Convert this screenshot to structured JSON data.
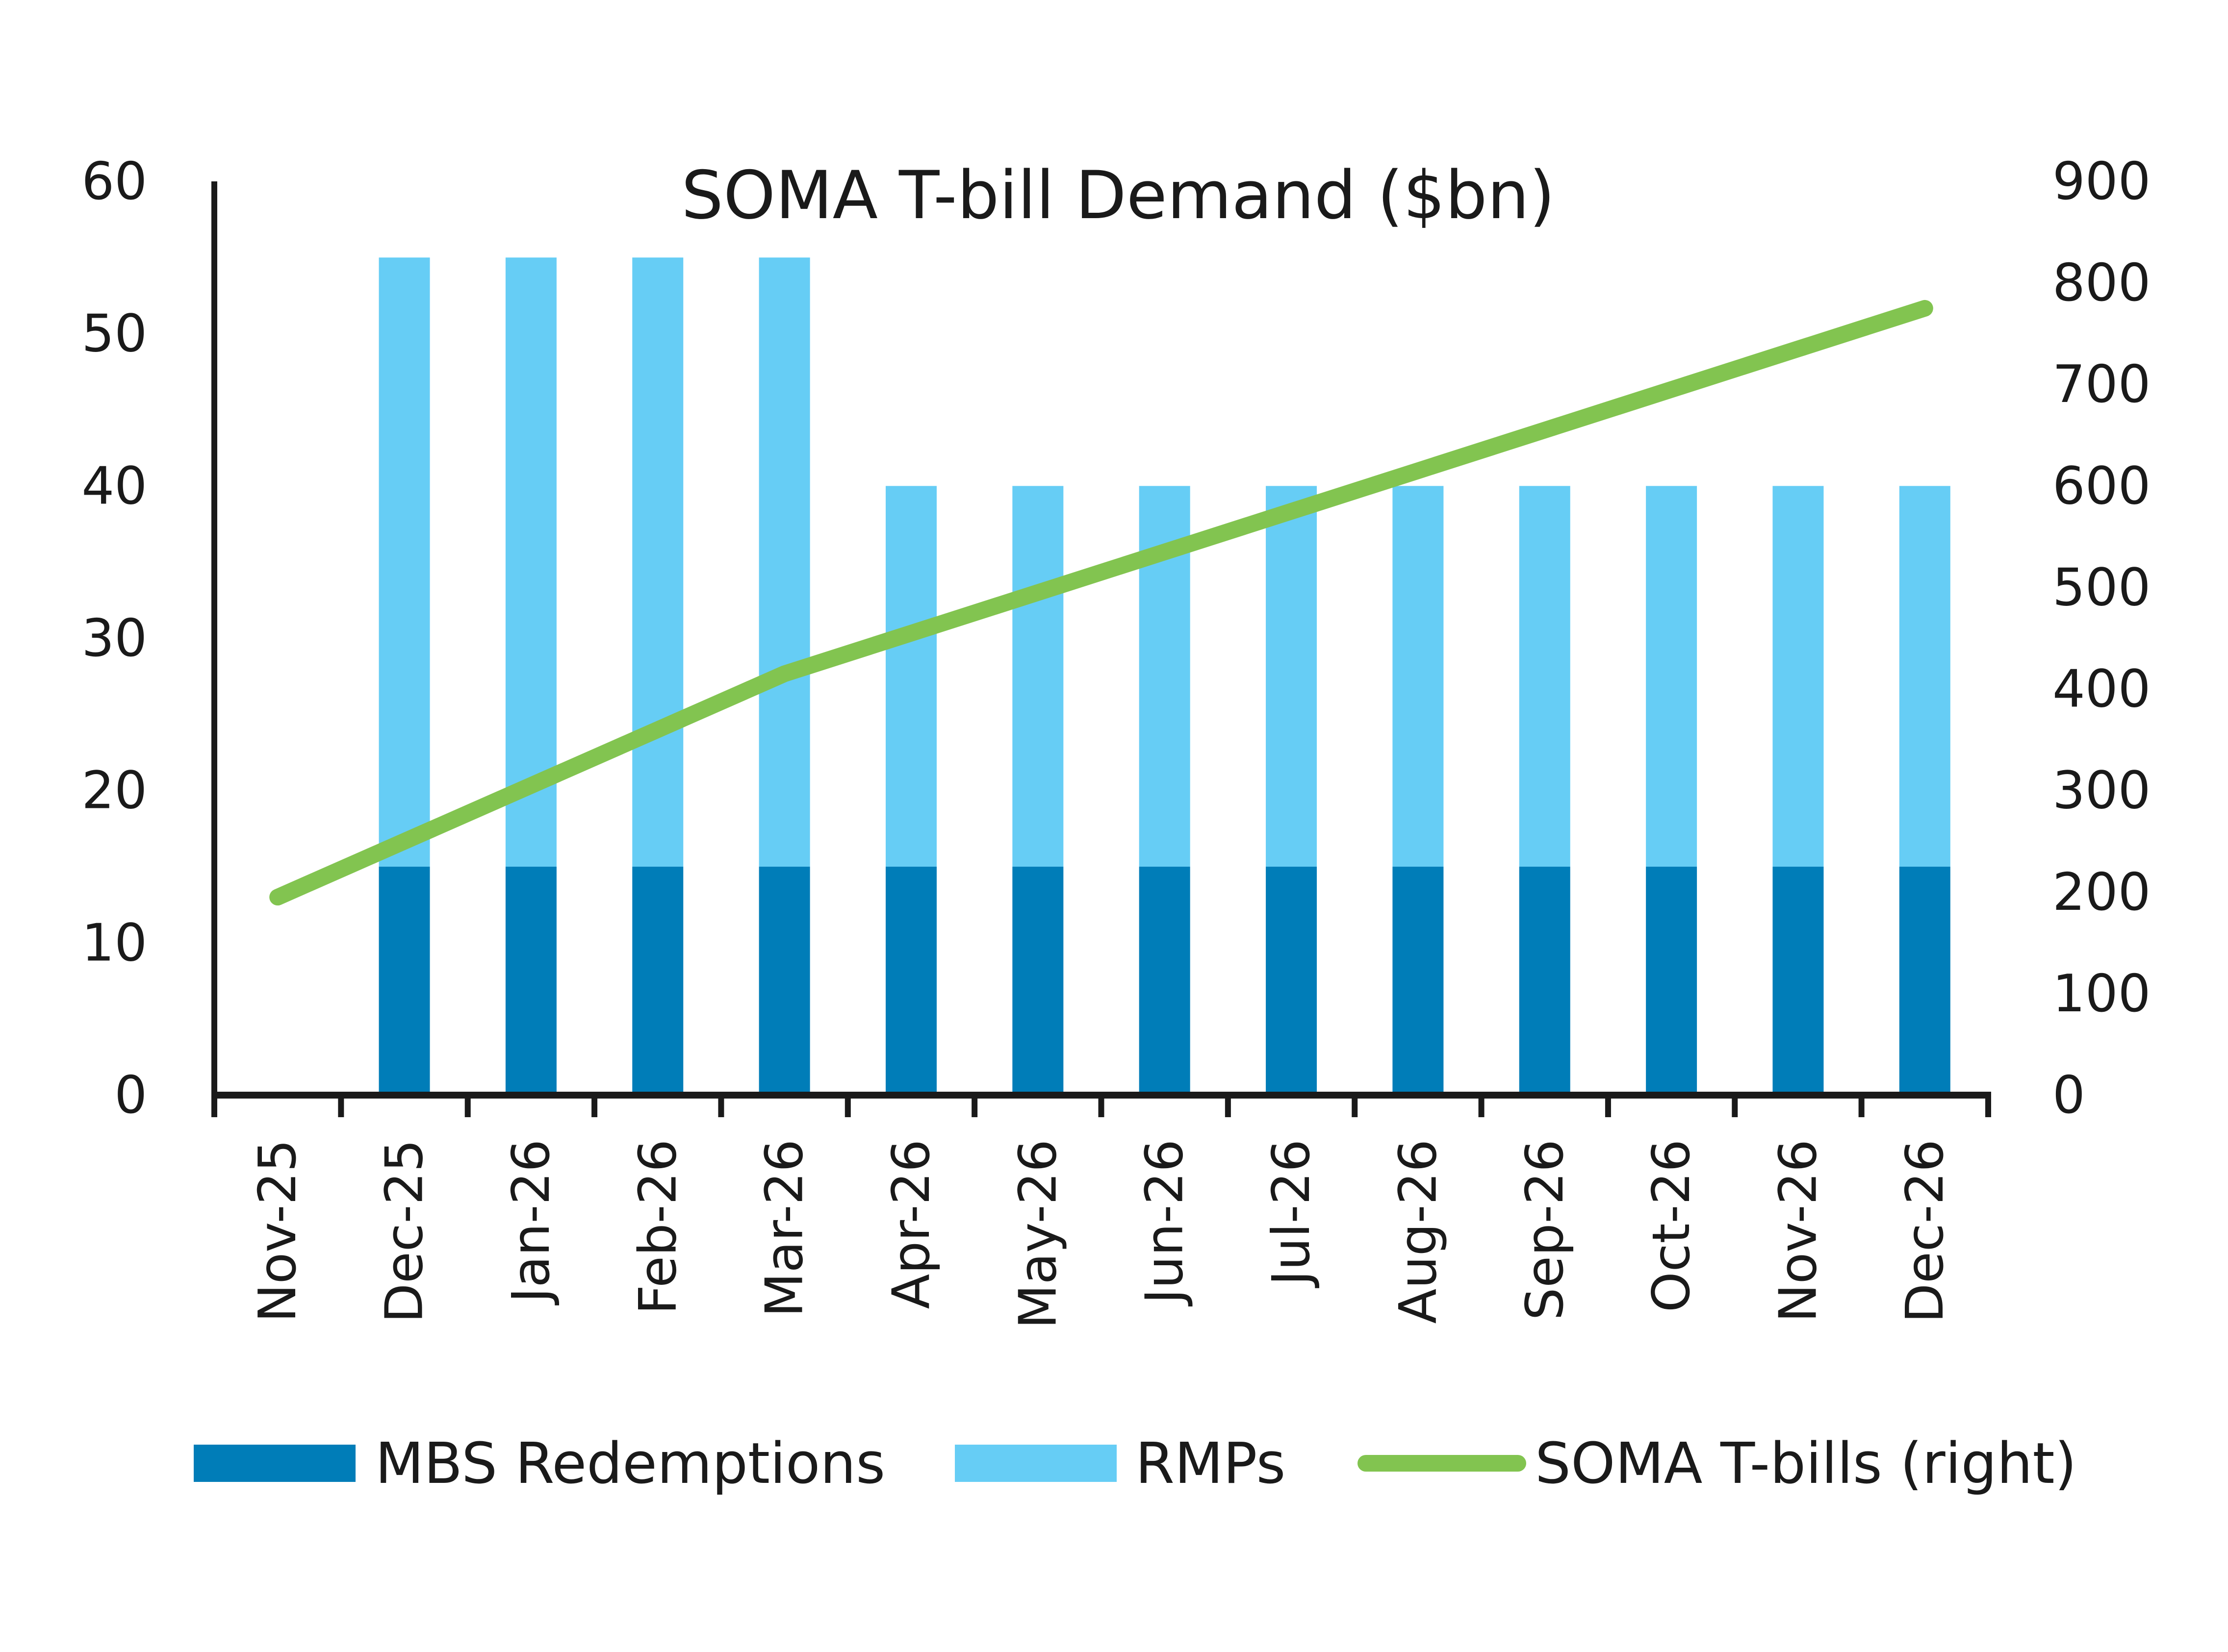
{
  "chart_data": {
    "type": "bar",
    "title": "SOMA T-bill Demand ($bn)",
    "categories": [
      "Nov-25",
      "Dec-25",
      "Jan-26",
      "Feb-26",
      "Mar-26",
      "Apr-26",
      "May-26",
      "Jun-26",
      "Jul-26",
      "Aug-26",
      "Sep-26",
      "Oct-26",
      "Nov-26",
      "Dec-26"
    ],
    "stacked": true,
    "series": [
      {
        "name": "MBS Redemptions",
        "type": "bar",
        "axis": "left",
        "color": "#007DB8",
        "values": [
          0,
          15,
          15,
          15,
          15,
          15,
          15,
          15,
          15,
          15,
          15,
          15,
          15,
          15
        ]
      },
      {
        "name": "RMPs",
        "type": "bar",
        "axis": "left",
        "color": "#66CDF5",
        "values": [
          0,
          40,
          40,
          40,
          40,
          25,
          25,
          25,
          25,
          25,
          25,
          25,
          25,
          25
        ]
      },
      {
        "name": "SOMA T-bills (right)",
        "type": "line",
        "axis": "right",
        "color": "#82C450",
        "values": [
          195,
          250,
          305,
          360,
          415,
          455,
          495,
          535,
          575,
          615,
          655,
          695,
          735,
          775
        ]
      }
    ],
    "y_left": {
      "min": 0,
      "max": 60,
      "ticks": [
        "0",
        "10",
        "20",
        "30",
        "40",
        "50",
        "60"
      ]
    },
    "y_right": {
      "min": 0,
      "max": 900,
      "ticks": [
        "0",
        "100",
        "200",
        "300",
        "400",
        "500",
        "600",
        "700",
        "800",
        "900"
      ]
    },
    "grid": false,
    "legend_position": "bottom"
  }
}
